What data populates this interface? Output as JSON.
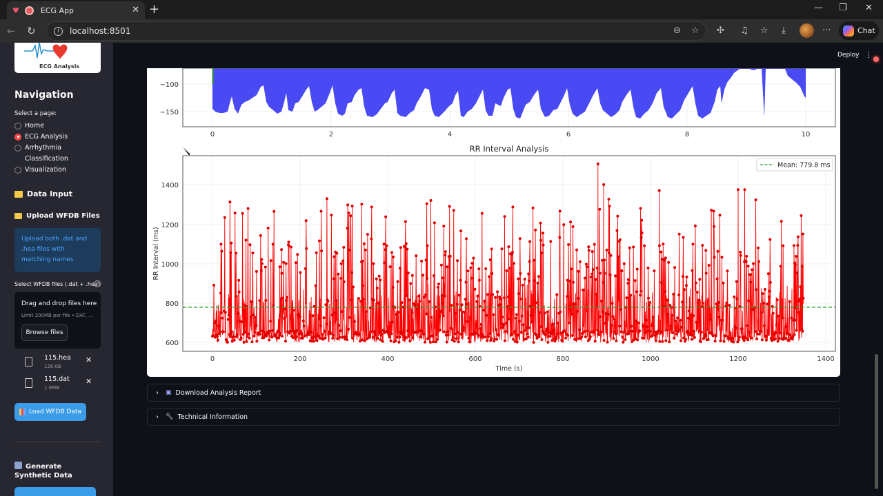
{
  "browser": {
    "tab_title": "ECG App",
    "url": "localhost:8501",
    "chat_label": "Chat",
    "toolbar_icons": [
      "back-icon",
      "reload-icon",
      "info-icon",
      "zoom-out-icon",
      "favorite-star-icon",
      "extensions-icon",
      "media-icon",
      "favorites-list-icon",
      "downloads-icon",
      "profile-avatar",
      "more-icon"
    ]
  },
  "app": {
    "deploy_label": "Deploy",
    "menu_icon": "kebab-menu-icon"
  },
  "sidebar": {
    "logo_text": "ECG Analysis",
    "nav_title": "Navigation",
    "select_label": "Select a page:",
    "pages": [
      {
        "label": "Home",
        "selected": false
      },
      {
        "label": "ECG Analysis",
        "selected": true
      },
      {
        "label": "Arrhythmia",
        "selected": false,
        "label2": "Classification"
      },
      {
        "label": "Visualization",
        "selected": false
      }
    ],
    "data_input_title": "Data Input",
    "upload_title": "Upload WFDB Files",
    "info_text": "Upload both .dat and .hea files with matching names",
    "uploader_label": "Select WFDB files (.dat + .hea)",
    "dropzone_title": "Drag and drop files here",
    "dropzone_limit": "Limit 200MB per file • DAT, …",
    "browse_label": "Browse files",
    "files": [
      {
        "name": "115.hea",
        "size": "126.0B"
      },
      {
        "name": "115.dat",
        "size": "1.9MB"
      }
    ],
    "load_button": "Load WFDB Data",
    "generate_title": "Generate Synthetic Data"
  },
  "main": {
    "expanders": [
      {
        "label": "Download Analysis Report",
        "icon": "inbox-tray-icon"
      },
      {
        "label": "Technical Information",
        "icon": "wrench-icon"
      }
    ]
  },
  "chart_data": [
    {
      "type": "area",
      "title": "",
      "xlabel": "",
      "ylabel": "",
      "x_ticks": [
        0,
        2,
        4,
        6,
        8,
        10
      ],
      "y_ticks": [
        -100,
        -150
      ],
      "xlim": [
        -0.5,
        10.5
      ],
      "ylim_visible": [
        -180,
        -70
      ],
      "color": "#4a4af5",
      "note": "Top ECG signal panel (partially scrolled out of view), filled blue signal between ~-165 and top of view over 0–10 s",
      "envelope_x": [
        0,
        0.5,
        1.0,
        1.4,
        1.8,
        2.2,
        2.6,
        3.0,
        3.4,
        3.8,
        4.2,
        4.6,
        5.0,
        5.4,
        5.8,
        6.2,
        6.6,
        7.0,
        7.4,
        7.8,
        8.2,
        8.6,
        9.0,
        9.4,
        9.8,
        10.0
      ],
      "envelope_y_min": [
        -150,
        -100,
        -155,
        -110,
        -160,
        -100,
        -160,
        -105,
        -155,
        -160,
        -110,
        -160,
        -105,
        -160,
        -100,
        -125,
        -155,
        -110,
        -160,
        -115,
        -160,
        -120,
        -90,
        -85,
        -105,
        -130
      ]
    },
    {
      "type": "line",
      "title": "RR Interval Analysis",
      "xlabel": "Time (s)",
      "ylabel": "RR Interval (ms)",
      "x_ticks": [
        0,
        200,
        400,
        600,
        800,
        1000,
        1200,
        1400
      ],
      "y_ticks": [
        600,
        800,
        1000,
        1200,
        1400
      ],
      "xlim": [
        -65,
        1420
      ],
      "ylim": [
        560,
        1555
      ],
      "grid": true,
      "legend": {
        "position": "upper right",
        "entries": [
          "Mean: 779.8 ms"
        ]
      },
      "series": [
        {
          "name": "RR Interval",
          "color": "#ff0000",
          "marker": "o",
          "x_range": [
            0,
            1350
          ],
          "y_range": [
            595,
            1505
          ],
          "notable_peaks": [
            {
              "x": 880,
              "y": 1505
            },
            {
              "x": 893,
              "y": 1400
            },
            {
              "x": 1200,
              "y": 1375
            },
            {
              "x": 1215,
              "y": 1375
            },
            {
              "x": 1020,
              "y": 1370
            }
          ]
        },
        {
          "name": "Mean: 779.8 ms",
          "color": "#2ca02c",
          "style": "dashed",
          "value": 779.8
        }
      ]
    }
  ]
}
